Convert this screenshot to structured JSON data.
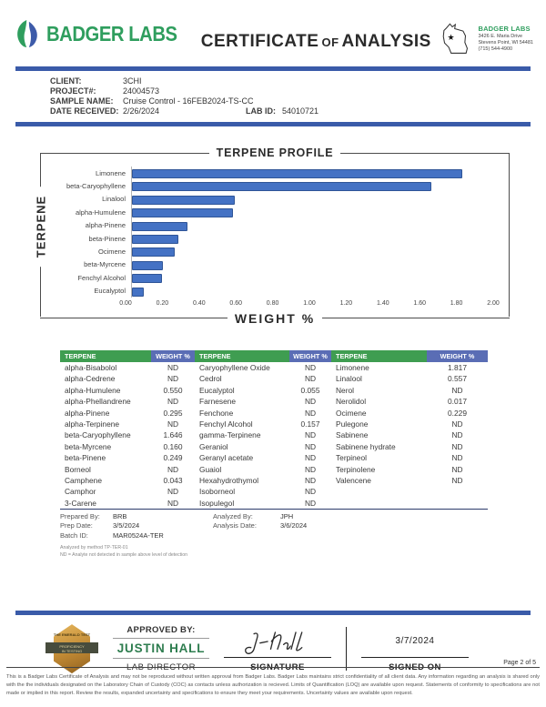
{
  "header": {
    "logo_text": "BADGER LABS",
    "title_word1": "CERTIFICATE",
    "title_of": "OF",
    "title_word2": "ANALYSIS",
    "address": {
      "name": "BADGER LABS",
      "line1": "3426 E. Maria Drive",
      "line2": "Stevens Point, WI 54481",
      "line3": "(715) 544-4900"
    }
  },
  "sample_info": {
    "client_label": "CLIENT:",
    "client": "3CHI",
    "project_label": "PROJECT#:",
    "project": "24004573",
    "sample_name_label": "SAMPLE NAME:",
    "sample_name": "Cruise Control - 16FEB2024-TS-CC",
    "date_received_label": "DATE RECEIVED:",
    "date_received": "2/26/2024",
    "lab_id_label": "LAB ID:",
    "lab_id": "54010721"
  },
  "chart_data": {
    "type": "bar",
    "orientation": "horizontal",
    "title": "TERPENE PROFILE",
    "xlabel": "WEIGHT %",
    "ylabel": "TERPENE",
    "xlim": [
      0,
      2.0
    ],
    "grid": false,
    "xticks": [
      "0.00",
      "0.20",
      "0.40",
      "0.60",
      "0.80",
      "1.00",
      "1.20",
      "1.40",
      "1.60",
      "1.80",
      "2.00"
    ],
    "categories": [
      "Limonene",
      "beta-Caryophyllene",
      "Linalool",
      "alpha-Humulene",
      "alpha-Pinene",
      "beta-Pinene",
      "Ocimene",
      "beta-Myrcene",
      "Fenchyl Alcohol",
      "Eucalyptol"
    ],
    "values": [
      1.817,
      1.646,
      0.557,
      0.55,
      0.295,
      0.249,
      0.229,
      0.16,
      0.157,
      0.055
    ],
    "bar_color": "#4472c4"
  },
  "table": {
    "header": [
      "TERPENE",
      "WEIGHT %",
      "TERPENE",
      "WEIGHT %",
      "TERPENE",
      "WEIGHT %"
    ],
    "rows": [
      [
        "alpha-Bisabolol",
        "ND",
        "Caryophyllene Oxide",
        "ND",
        "Limonene",
        "1.817"
      ],
      [
        "alpha-Cedrene",
        "ND",
        "Cedrol",
        "ND",
        "Linalool",
        "0.557"
      ],
      [
        "alpha-Humulene",
        "0.550",
        "Eucalyptol",
        "0.055",
        "Nerol",
        "ND"
      ],
      [
        "alpha-Phellandrene",
        "ND",
        "Farnesene",
        "ND",
        "Nerolidol",
        "0.017"
      ],
      [
        "alpha-Pinene",
        "0.295",
        "Fenchone",
        "ND",
        "Ocimene",
        "0.229"
      ],
      [
        "alpha-Terpinene",
        "ND",
        "Fenchyl Alcohol",
        "0.157",
        "Pulegone",
        "ND"
      ],
      [
        "beta-Caryophyllene",
        "1.646",
        "gamma-Terpinene",
        "ND",
        "Sabinene",
        "ND"
      ],
      [
        "beta-Myrcene",
        "0.160",
        "Geraniol",
        "ND",
        "Sabinene hydrate",
        "ND"
      ],
      [
        "beta-Pinene",
        "0.249",
        "Geranyl acetate",
        "ND",
        "Terpineol",
        "ND"
      ],
      [
        "Borneol",
        "ND",
        "Guaiol",
        "ND",
        "Terpinolene",
        "ND"
      ],
      [
        "Camphene",
        "0.043",
        "Hexahydrothymol",
        "ND",
        "Valencene",
        "ND"
      ],
      [
        "Camphor",
        "ND",
        "Isoborneol",
        "ND",
        "",
        ""
      ],
      [
        "3-Carene",
        "ND",
        "Isopulegol",
        "ND",
        "",
        ""
      ]
    ]
  },
  "analysis_meta": {
    "prepared_by_label": "Prepared By:",
    "prepared_by": "BRB",
    "analyzed_by_label": "Analyzed By:",
    "analyzed_by": "JPH",
    "prep_date_label": "Prep Date:",
    "prep_date": "3/5/2024",
    "analysis_date_label": "Analysis Date:",
    "analysis_date": "3/6/2024",
    "batch_id_label": "Batch ID:",
    "batch_id": "MAR0524A-TER",
    "method_note": "Analyzed by method TP-TER-01",
    "nd_note": "ND = Analyte not detected in sample above level of detection"
  },
  "approval": {
    "approved_by_label": "APPROVED BY:",
    "approver_name": "JUSTIN HALL",
    "approver_title": "LAB DIRECTOR",
    "signature_label": "SIGNATURE",
    "signed_on_label": "SIGNED ON",
    "signed_on_date": "3/7/2024",
    "badge_line1": "THE EMERALD TEST",
    "badge_line2": "PROFICIENCY",
    "badge_line3": "IN TESTING"
  },
  "footer": {
    "page_label": "Page 2 of 5",
    "disclaimer": "This is a Badger Labs Certificate of Analysis and may not be reproduced without written approval from Badger Labs. Badger Labs maintains strict confidentiality of all client data. Any information regarding an analysis is shared only with the the individuals designated on the Laboratory Chain of Custody (COC) as contacts unless authorization is recieved. Limits of Quantification (LOQ) are available upon request. Statements of conformity to specifications are not made or implied in this report. Review the results, expanded uncertainty and specifications to ensure they meet your requirements. Uncertainty values are available upon request."
  },
  "colors": {
    "divider_blue": "#3a5ba9",
    "table_header_green": "#3f9d51",
    "table_header_blue": "#5a6db5",
    "bar_blue": "#4472c4",
    "brand_green": "#2f9e5e"
  }
}
